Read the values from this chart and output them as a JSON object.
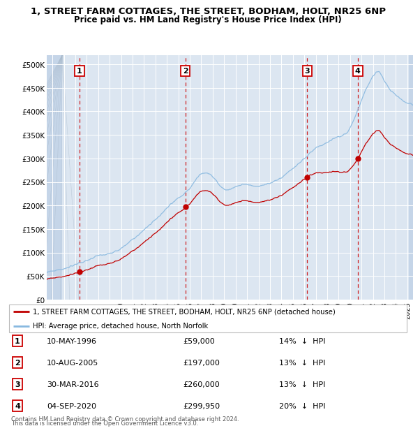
{
  "title_line1": "1, STREET FARM COTTAGES, THE STREET, BODHAM, HOLT, NR25 6NP",
  "title_line2": "Price paid vs. HM Land Registry's House Price Index (HPI)",
  "xlim_start": 1993.5,
  "xlim_end": 2025.5,
  "ylim_min": 0,
  "ylim_max": 520000,
  "yticks": [
    0,
    50000,
    100000,
    150000,
    200000,
    250000,
    300000,
    350000,
    400000,
    450000,
    500000
  ],
  "ytick_labels": [
    "£0",
    "£50K",
    "£100K",
    "£150K",
    "£200K",
    "£250K",
    "£300K",
    "£350K",
    "£400K",
    "£450K",
    "£500K"
  ],
  "xticks": [
    1994,
    1995,
    1996,
    1997,
    1998,
    1999,
    2000,
    2001,
    2002,
    2003,
    2004,
    2005,
    2006,
    2007,
    2008,
    2009,
    2010,
    2011,
    2012,
    2013,
    2014,
    2015,
    2016,
    2017,
    2018,
    2019,
    2020,
    2021,
    2022,
    2023,
    2024,
    2025
  ],
  "hpi_color": "#89b9e0",
  "price_color": "#c00000",
  "sale_marker_color": "#c00000",
  "dashed_line_color": "#cc0000",
  "background_plot": "#dce6f1",
  "background_hatch_color": "#c5d5e8",
  "grid_color": "#ffffff",
  "hatch_end": 1994.85,
  "hatch_start_right": 2025.15,
  "sales": [
    {
      "num": 1,
      "year": 1996.36,
      "price": 59000,
      "label": "1",
      "date": "10-MAY-1996",
      "pct": "14%",
      "dir": "↓"
    },
    {
      "num": 2,
      "year": 2005.61,
      "price": 197000,
      "label": "2",
      "date": "10-AUG-2005",
      "pct": "13%",
      "dir": "↓"
    },
    {
      "num": 3,
      "year": 2016.25,
      "price": 260000,
      "label": "3",
      "date": "30-MAR-2016",
      "pct": "13%",
      "dir": "↓"
    },
    {
      "num": 4,
      "year": 2020.68,
      "price": 299950,
      "label": "4",
      "date": "04-SEP-2020",
      "pct": "20%",
      "dir": "↓"
    }
  ],
  "legend_label_red": "1, STREET FARM COTTAGES, THE STREET, BODHAM, HOLT, NR25 6NP (detached house)",
  "legend_label_blue": "HPI: Average price, detached house, North Norfolk",
  "footer_line1": "Contains HM Land Registry data © Crown copyright and database right 2024.",
  "footer_line2": "This data is licensed under the Open Government Licence v3.0."
}
